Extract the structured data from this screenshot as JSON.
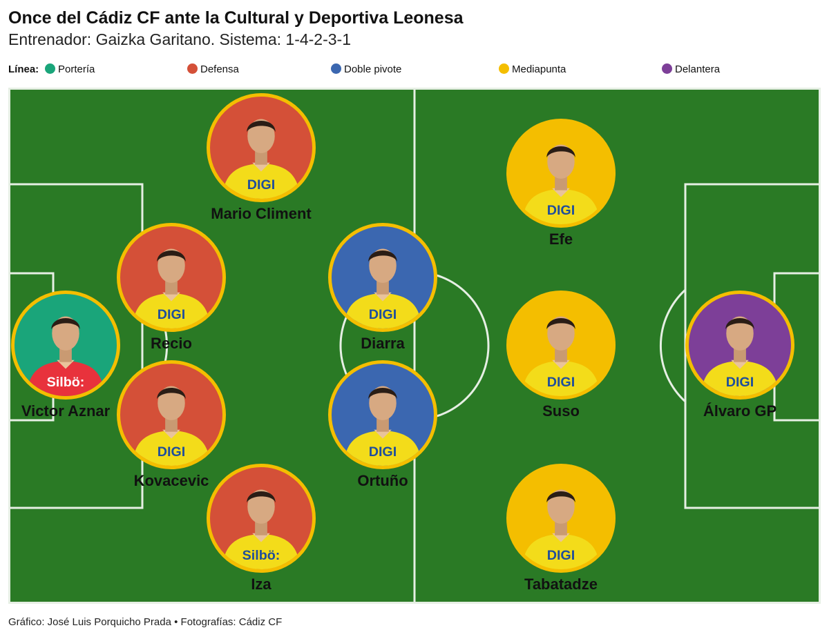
{
  "header": {
    "title": "Once del Cádiz CF ante la Cultural y Deportiva Leonesa",
    "subtitle": "Entrenador: Gaizka Garitano. Sistema: 1-4-2-3-1"
  },
  "legend": {
    "title": "Línea:",
    "items": [
      {
        "label": "Portería",
        "color": "#1aa57a"
      },
      {
        "label": "Defensa",
        "color": "#d45038"
      },
      {
        "label": "Doble pivote",
        "color": "#3b67b0"
      },
      {
        "label": "Mediapunta",
        "color": "#f4be00"
      },
      {
        "label": "Delantera",
        "color": "#7d3f98"
      }
    ]
  },
  "pitch": {
    "grass_color": "#2a7a25",
    "line_color": "#e6efe4"
  },
  "players": [
    {
      "name": "Victor Aznar",
      "line": "Portería",
      "bg": "#1aa57a",
      "shirt": "#e8323c",
      "sponsor": "Silbö:"
    },
    {
      "name": "Mario Climent",
      "line": "Defensa",
      "bg": "#d45038",
      "shirt": "#f3dc1a",
      "sponsor": "DIGI"
    },
    {
      "name": "Recio",
      "line": "Defensa",
      "bg": "#d45038",
      "shirt": "#f3dc1a",
      "sponsor": "DIGI"
    },
    {
      "name": "Kovacevic",
      "line": "Defensa",
      "bg": "#d45038",
      "shirt": "#f3dc1a",
      "sponsor": "DIGI"
    },
    {
      "name": "Iza",
      "line": "Defensa",
      "bg": "#d45038",
      "shirt": "#f3dc1a",
      "sponsor": "Silbö:"
    },
    {
      "name": "Diarra",
      "line": "Doble pivote",
      "bg": "#3b67b0",
      "shirt": "#f3dc1a",
      "sponsor": "DIGI"
    },
    {
      "name": "Ortuño",
      "line": "Doble pivote",
      "bg": "#3b67b0",
      "shirt": "#f3dc1a",
      "sponsor": "DIGI"
    },
    {
      "name": "Efe",
      "line": "Mediapunta",
      "bg": "#f4be00",
      "shirt": "#f3dc1a",
      "sponsor": "DIGI"
    },
    {
      "name": "Suso",
      "line": "Mediapunta",
      "bg": "#f4be00",
      "shirt": "#f3dc1a",
      "sponsor": "DIGI"
    },
    {
      "name": "Tabatadze",
      "line": "Mediapunta",
      "bg": "#f4be00",
      "shirt": "#f3dc1a",
      "sponsor": "DIGI"
    },
    {
      "name": "Álvaro GP",
      "line": "Delantera",
      "bg": "#7d3f98",
      "shirt": "#f3dc1a",
      "sponsor": "DIGI"
    }
  ],
  "footer": {
    "credit": "Gráfico: José Luis Porquicho Prada • Fotografías: Cádiz CF"
  }
}
